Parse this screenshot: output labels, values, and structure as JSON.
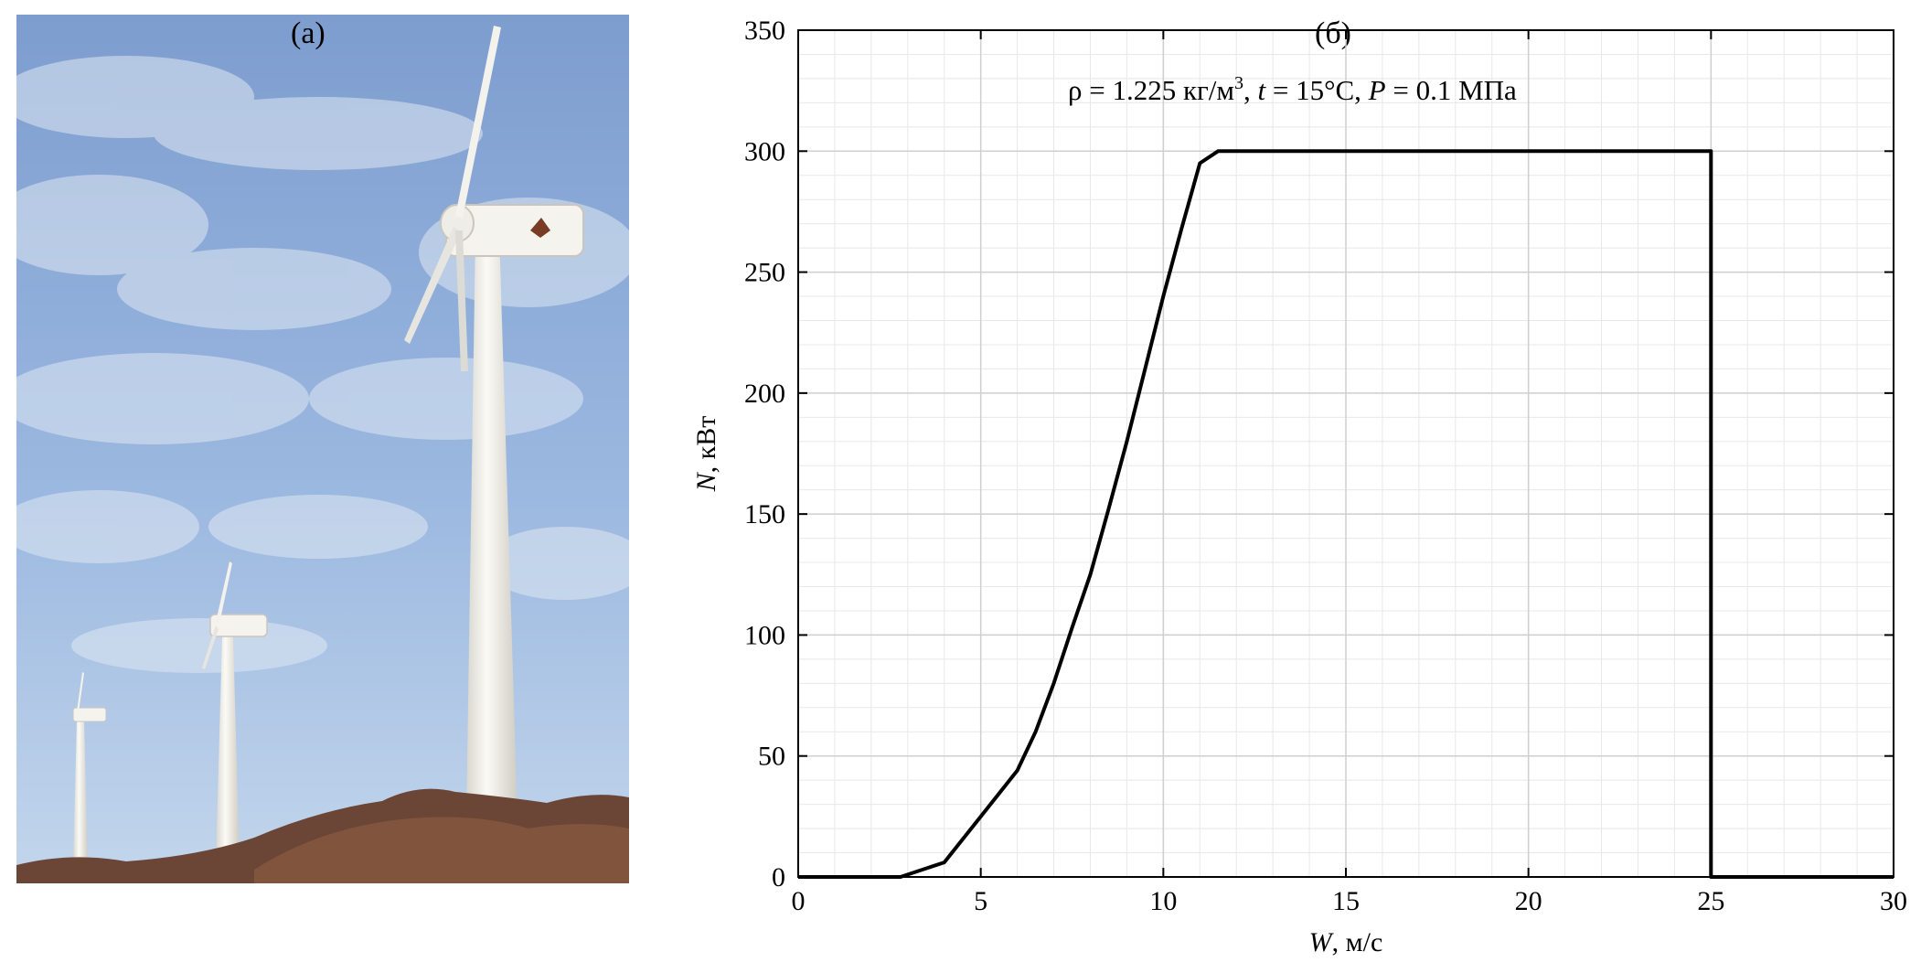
{
  "panels": {
    "photo_label": "(а)",
    "chart_label": "(б)"
  },
  "chart_data": {
    "type": "line",
    "title": "ρ = 1.225 кг/м³, t = 15°C, P = 0.1 МПа",
    "title_parts": {
      "rho": "ρ = 1.225 кг/м",
      "rho_exp": "3",
      "t_sep": ", ",
      "t_sym": "t",
      "t_val": " = 15°C, ",
      "p_sym": "P",
      "p_val": " = 0.1 МПа"
    },
    "xlabel": "W, м/с",
    "xlabel_parts": {
      "sym": "W",
      "unit": ", м/с"
    },
    "ylabel": "N, кВт",
    "ylabel_parts": {
      "sym": "N",
      "unit": ", кВт"
    },
    "xlim": [
      0,
      30
    ],
    "ylim": [
      0,
      350
    ],
    "x_ticks": [
      "0",
      "5",
      "10",
      "15",
      "20",
      "25",
      "30"
    ],
    "y_ticks": [
      "0",
      "50",
      "100",
      "150",
      "200",
      "250",
      "300",
      "350"
    ],
    "grid": true,
    "series": [
      {
        "x": [
          0,
          2.8,
          4,
          5,
          6,
          6.5,
          7,
          7.5,
          8,
          8.5,
          9,
          9.5,
          10,
          10.5,
          11,
          11.5,
          25,
          25,
          30
        ],
        "y": [
          0,
          0,
          6,
          25,
          44,
          60,
          80,
          103,
          125,
          152,
          180,
          210,
          240,
          268,
          295,
          300,
          300,
          0,
          0
        ]
      }
    ]
  },
  "colors": {
    "line": "#000000",
    "grid_major": "#cfcfcf",
    "grid_minor": "#e8e8e8",
    "sky_top": "#7f9fd0",
    "sky_bottom": "#b9d0ea",
    "turbine": "#f2f1ec",
    "shrub": "#6e4a3a"
  }
}
